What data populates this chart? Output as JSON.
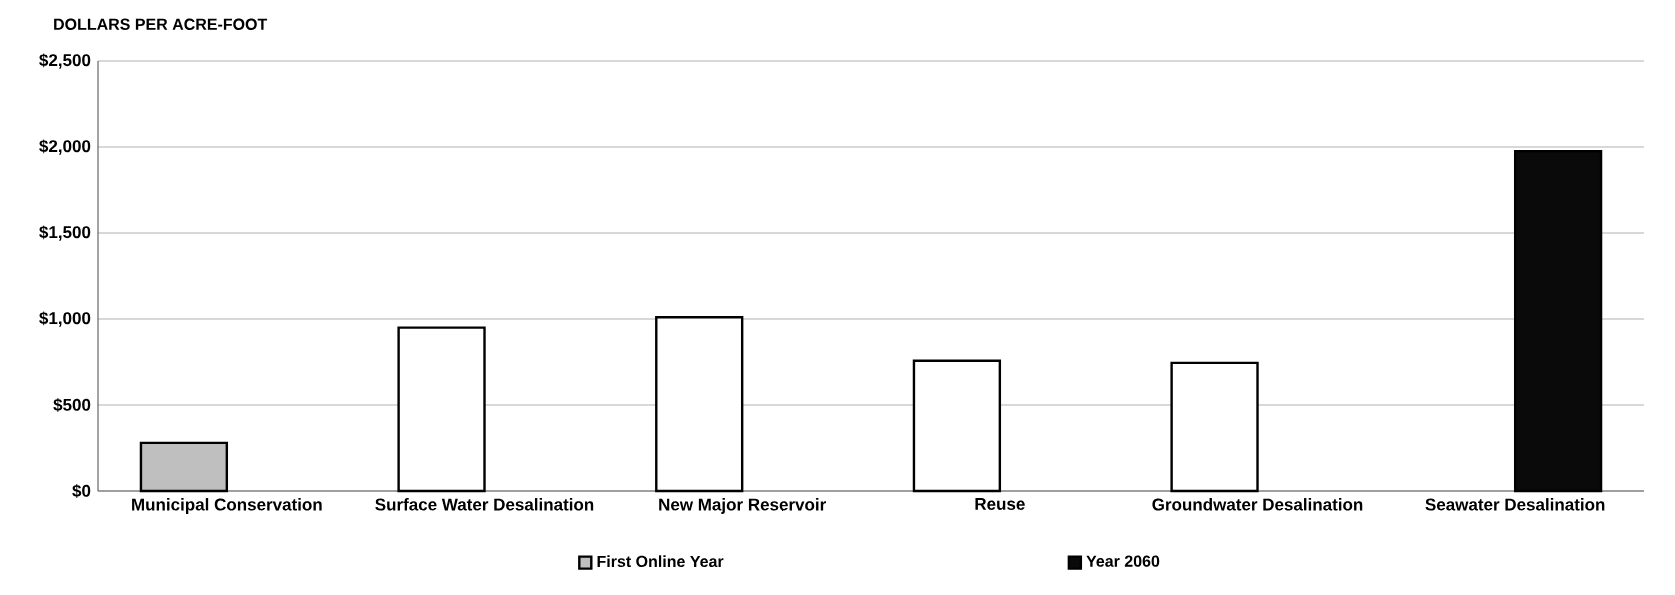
{
  "chart_data": {
    "type": "bar",
    "ylabel": "DOLLARS PER ACRE-FOOT",
    "categories": [
      "Municipal Conservation",
      "Surface Water Desalination",
      "New Major Reservoir",
      "Reuse",
      "Groundwater Desalination",
      "Seawater Desalination"
    ],
    "series": [
      {
        "name": "First Online Year",
        "color": "#bfbfbf",
        "colors": [
          "#bfbfbf",
          "#ffffff",
          "#ffffff",
          "#ffffff",
          "#ffffff",
          "#ffffff"
        ],
        "values": [
          280,
          950,
          1010,
          757,
          745,
          null
        ]
      },
      {
        "name": "Year 2060",
        "color": "#0a0a0a",
        "values": [
          null,
          null,
          null,
          null,
          null,
          1975
        ]
      }
    ],
    "ylim": [
      0,
      2500
    ],
    "yticks": [
      {
        "value": 0,
        "label": "$0"
      },
      {
        "value": 500,
        "label": "$500"
      },
      {
        "value": 1000,
        "label": "$1,000"
      },
      {
        "value": 1500,
        "label": "$1,500"
      },
      {
        "value": 2000,
        "label": "$2,000"
      },
      {
        "value": 2500,
        "label": "$2,500"
      }
    ],
    "grid": "y",
    "legend": "bottom"
  }
}
